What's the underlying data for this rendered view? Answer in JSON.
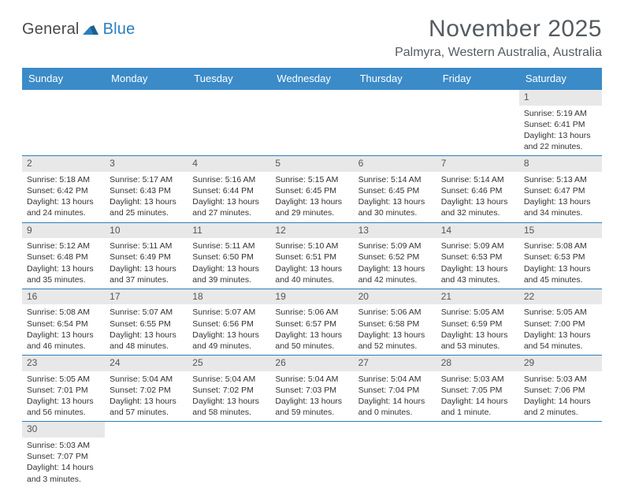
{
  "brand": {
    "part1": "General",
    "part2": "Blue"
  },
  "title": "November 2025",
  "location": "Palmyra, Western Australia, Australia",
  "colors": {
    "header_bg": "#3b8bc9",
    "header_text": "#ffffff",
    "row_divider": "#2a7fbf",
    "daynum_bg": "#e8e8e8",
    "daynum_text": "#555555",
    "body_text": "#333333",
    "title_text": "#555b60",
    "logo_gray": "#4a4a4a",
    "logo_blue": "#2a7fbf",
    "page_bg": "#ffffff"
  },
  "fonts": {
    "month_size_pt": 22,
    "location_size_pt": 12,
    "header_cell_pt": 10,
    "daynum_pt": 9,
    "body_pt": 8
  },
  "weekdays": [
    "Sunday",
    "Monday",
    "Tuesday",
    "Wednesday",
    "Thursday",
    "Friday",
    "Saturday"
  ],
  "leading_blanks": 6,
  "days": [
    {
      "n": 1,
      "sunrise": "5:19 AM",
      "sunset": "6:41 PM",
      "daylight": "13 hours and 22 minutes."
    },
    {
      "n": 2,
      "sunrise": "5:18 AM",
      "sunset": "6:42 PM",
      "daylight": "13 hours and 24 minutes."
    },
    {
      "n": 3,
      "sunrise": "5:17 AM",
      "sunset": "6:43 PM",
      "daylight": "13 hours and 25 minutes."
    },
    {
      "n": 4,
      "sunrise": "5:16 AM",
      "sunset": "6:44 PM",
      "daylight": "13 hours and 27 minutes."
    },
    {
      "n": 5,
      "sunrise": "5:15 AM",
      "sunset": "6:45 PM",
      "daylight": "13 hours and 29 minutes."
    },
    {
      "n": 6,
      "sunrise": "5:14 AM",
      "sunset": "6:45 PM",
      "daylight": "13 hours and 30 minutes."
    },
    {
      "n": 7,
      "sunrise": "5:14 AM",
      "sunset": "6:46 PM",
      "daylight": "13 hours and 32 minutes."
    },
    {
      "n": 8,
      "sunrise": "5:13 AM",
      "sunset": "6:47 PM",
      "daylight": "13 hours and 34 minutes."
    },
    {
      "n": 9,
      "sunrise": "5:12 AM",
      "sunset": "6:48 PM",
      "daylight": "13 hours and 35 minutes."
    },
    {
      "n": 10,
      "sunrise": "5:11 AM",
      "sunset": "6:49 PM",
      "daylight": "13 hours and 37 minutes."
    },
    {
      "n": 11,
      "sunrise": "5:11 AM",
      "sunset": "6:50 PM",
      "daylight": "13 hours and 39 minutes."
    },
    {
      "n": 12,
      "sunrise": "5:10 AM",
      "sunset": "6:51 PM",
      "daylight": "13 hours and 40 minutes."
    },
    {
      "n": 13,
      "sunrise": "5:09 AM",
      "sunset": "6:52 PM",
      "daylight": "13 hours and 42 minutes."
    },
    {
      "n": 14,
      "sunrise": "5:09 AM",
      "sunset": "6:53 PM",
      "daylight": "13 hours and 43 minutes."
    },
    {
      "n": 15,
      "sunrise": "5:08 AM",
      "sunset": "6:53 PM",
      "daylight": "13 hours and 45 minutes."
    },
    {
      "n": 16,
      "sunrise": "5:08 AM",
      "sunset": "6:54 PM",
      "daylight": "13 hours and 46 minutes."
    },
    {
      "n": 17,
      "sunrise": "5:07 AM",
      "sunset": "6:55 PM",
      "daylight": "13 hours and 48 minutes."
    },
    {
      "n": 18,
      "sunrise": "5:07 AM",
      "sunset": "6:56 PM",
      "daylight": "13 hours and 49 minutes."
    },
    {
      "n": 19,
      "sunrise": "5:06 AM",
      "sunset": "6:57 PM",
      "daylight": "13 hours and 50 minutes."
    },
    {
      "n": 20,
      "sunrise": "5:06 AM",
      "sunset": "6:58 PM",
      "daylight": "13 hours and 52 minutes."
    },
    {
      "n": 21,
      "sunrise": "5:05 AM",
      "sunset": "6:59 PM",
      "daylight": "13 hours and 53 minutes."
    },
    {
      "n": 22,
      "sunrise": "5:05 AM",
      "sunset": "7:00 PM",
      "daylight": "13 hours and 54 minutes."
    },
    {
      "n": 23,
      "sunrise": "5:05 AM",
      "sunset": "7:01 PM",
      "daylight": "13 hours and 56 minutes."
    },
    {
      "n": 24,
      "sunrise": "5:04 AM",
      "sunset": "7:02 PM",
      "daylight": "13 hours and 57 minutes."
    },
    {
      "n": 25,
      "sunrise": "5:04 AM",
      "sunset": "7:02 PM",
      "daylight": "13 hours and 58 minutes."
    },
    {
      "n": 26,
      "sunrise": "5:04 AM",
      "sunset": "7:03 PM",
      "daylight": "13 hours and 59 minutes."
    },
    {
      "n": 27,
      "sunrise": "5:04 AM",
      "sunset": "7:04 PM",
      "daylight": "14 hours and 0 minutes."
    },
    {
      "n": 28,
      "sunrise": "5:03 AM",
      "sunset": "7:05 PM",
      "daylight": "14 hours and 1 minute."
    },
    {
      "n": 29,
      "sunrise": "5:03 AM",
      "sunset": "7:06 PM",
      "daylight": "14 hours and 2 minutes."
    },
    {
      "n": 30,
      "sunrise": "5:03 AM",
      "sunset": "7:07 PM",
      "daylight": "14 hours and 3 minutes."
    }
  ],
  "labels": {
    "sunrise": "Sunrise:",
    "sunset": "Sunset:",
    "daylight": "Daylight:"
  }
}
